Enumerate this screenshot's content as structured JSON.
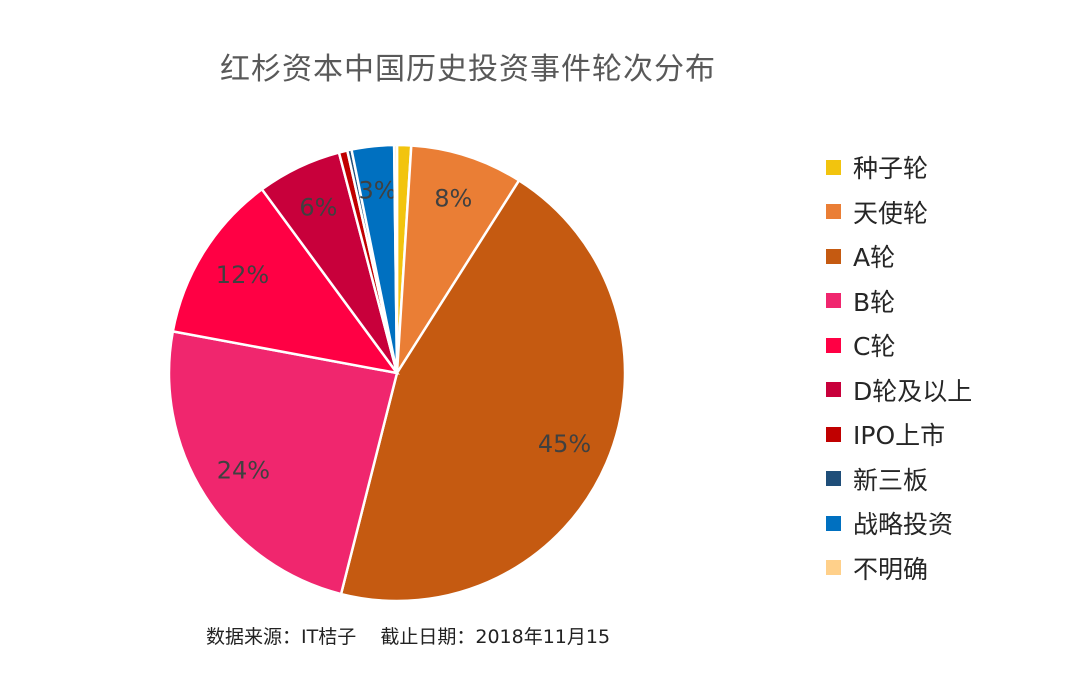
{
  "chart_data": {
    "type": "pie",
    "title": "红杉资本中国历史投资事件轮次分布",
    "source_note": "数据来源：IT桔子    截止日期：2018年11月15",
    "series": [
      {
        "name": "种子轮",
        "value": 1,
        "color": "#F2C40E",
        "label": ""
      },
      {
        "name": "天使轮",
        "value": 8,
        "color": "#EA7E35",
        "label": "8%"
      },
      {
        "name": "A轮",
        "value": 45,
        "color": "#C55A11",
        "label": "45%"
      },
      {
        "name": "B轮",
        "value": 24,
        "color": "#F0266E",
        "label": "24%"
      },
      {
        "name": "C轮",
        "value": 12,
        "color": "#FF0044",
        "label": "12%"
      },
      {
        "name": "D轮及以上",
        "value": 6,
        "color": "#C8003B",
        "label": "6%"
      },
      {
        "name": "IPO上市",
        "value": 0.6,
        "color": "#C00000",
        "label": ""
      },
      {
        "name": "新三板",
        "value": 0.3,
        "color": "#1F4E79",
        "label": ""
      },
      {
        "name": "战略投资",
        "value": 3,
        "color": "#0070C0",
        "label": "3%"
      },
      {
        "name": "不明确",
        "value": 0.2,
        "color": "#FFD08A",
        "label": ""
      }
    ],
    "legend_position": "right"
  }
}
